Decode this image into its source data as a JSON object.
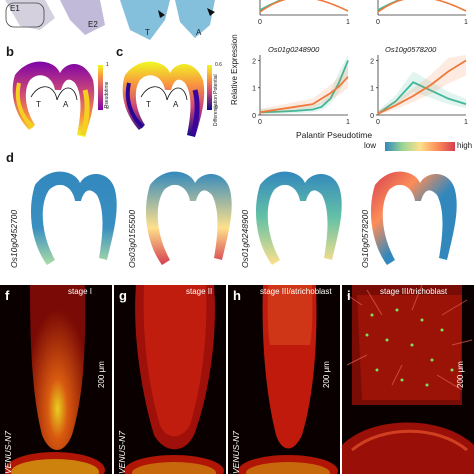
{
  "panels": {
    "a": {
      "labels": [
        "E1",
        "E2"
      ],
      "right_labels": [
        "T",
        "A"
      ]
    },
    "b": {
      "letter": "b",
      "colorbar": "Pseudotime",
      "cb_ticks": [
        "1",
        "0"
      ],
      "branches": [
        "T",
        "A"
      ]
    },
    "c": {
      "letter": "c",
      "colorbar": "Differentiation Potential",
      "cb_ticks": [
        "0.6",
        "0"
      ],
      "branches": [
        "T",
        "A"
      ]
    },
    "e": {
      "ylabel": "Relative Expression",
      "xlabel": "Palantir Pseudotime",
      "genes": [
        "Os01g0248900",
        "Os10g0578200"
      ],
      "top_ticks": [
        "0",
        "1",
        "0",
        "1"
      ]
    },
    "d": {
      "letter": "d",
      "legend_low": "low",
      "legend_high": "high",
      "genes": [
        "Os10g0452700",
        "Os03g0155500",
        "Os01g0248900",
        "Os10g0578200"
      ]
    },
    "f": {
      "letter": "f",
      "stage": "stage I",
      "scale": "200 μm",
      "venus": "VENUS-N7"
    },
    "g": {
      "letter": "g",
      "stage": "stage II",
      "venus": "VENUS-N7"
    },
    "h": {
      "letter": "h",
      "stage": "stage III/atrichoblast",
      "scale": "200 μm",
      "venus": "VENUS-N7"
    },
    "i": {
      "letter": "i",
      "stage": "stage III/trichoblast",
      "scale": "200 μm"
    }
  },
  "colors": {
    "series_green": "#3fb89a",
    "series_orange": "#ef7a3c",
    "plasma": "plasma",
    "spectral": "spectral"
  },
  "chart_data": [
    {
      "type": "line",
      "title": "Os01g0248900",
      "xlabel": "Palantir Pseudotime",
      "ylabel": "Relative Expression",
      "xlim": [
        0,
        1
      ],
      "ylim": [
        0,
        2.2
      ],
      "yticks": [
        0,
        1,
        2
      ],
      "series": [
        {
          "x": [
            0,
            0.2,
            0.4,
            0.6,
            0.7,
            0.8,
            0.9,
            1.0
          ],
          "values": [
            0.1,
            0.12,
            0.15,
            0.2,
            0.3,
            0.6,
            1.2,
            2.0
          ]
        },
        {
          "x": [
            0,
            0.2,
            0.4,
            0.6,
            0.7,
            0.8,
            0.9,
            1.0
          ],
          "values": [
            0.1,
            0.2,
            0.3,
            0.4,
            0.6,
            0.8,
            1.05,
            1.4
          ]
        }
      ]
    },
    {
      "type": "line",
      "title": "Os10g0578200",
      "xlabel": "Palantir Pseudotime",
      "xlim": [
        0,
        1
      ],
      "ylim": [
        0,
        2.2
      ],
      "yticks": [
        0,
        1,
        2
      ],
      "series": [
        {
          "x": [
            0,
            0.2,
            0.4,
            0.6,
            0.8,
            1.0
          ],
          "values": [
            0.05,
            0.5,
            1.2,
            0.9,
            0.6,
            0.4
          ]
        },
        {
          "x": [
            0,
            0.2,
            0.4,
            0.6,
            0.8,
            1.0
          ],
          "values": [
            0.05,
            0.35,
            0.7,
            1.1,
            1.6,
            2.0
          ]
        }
      ]
    }
  ]
}
